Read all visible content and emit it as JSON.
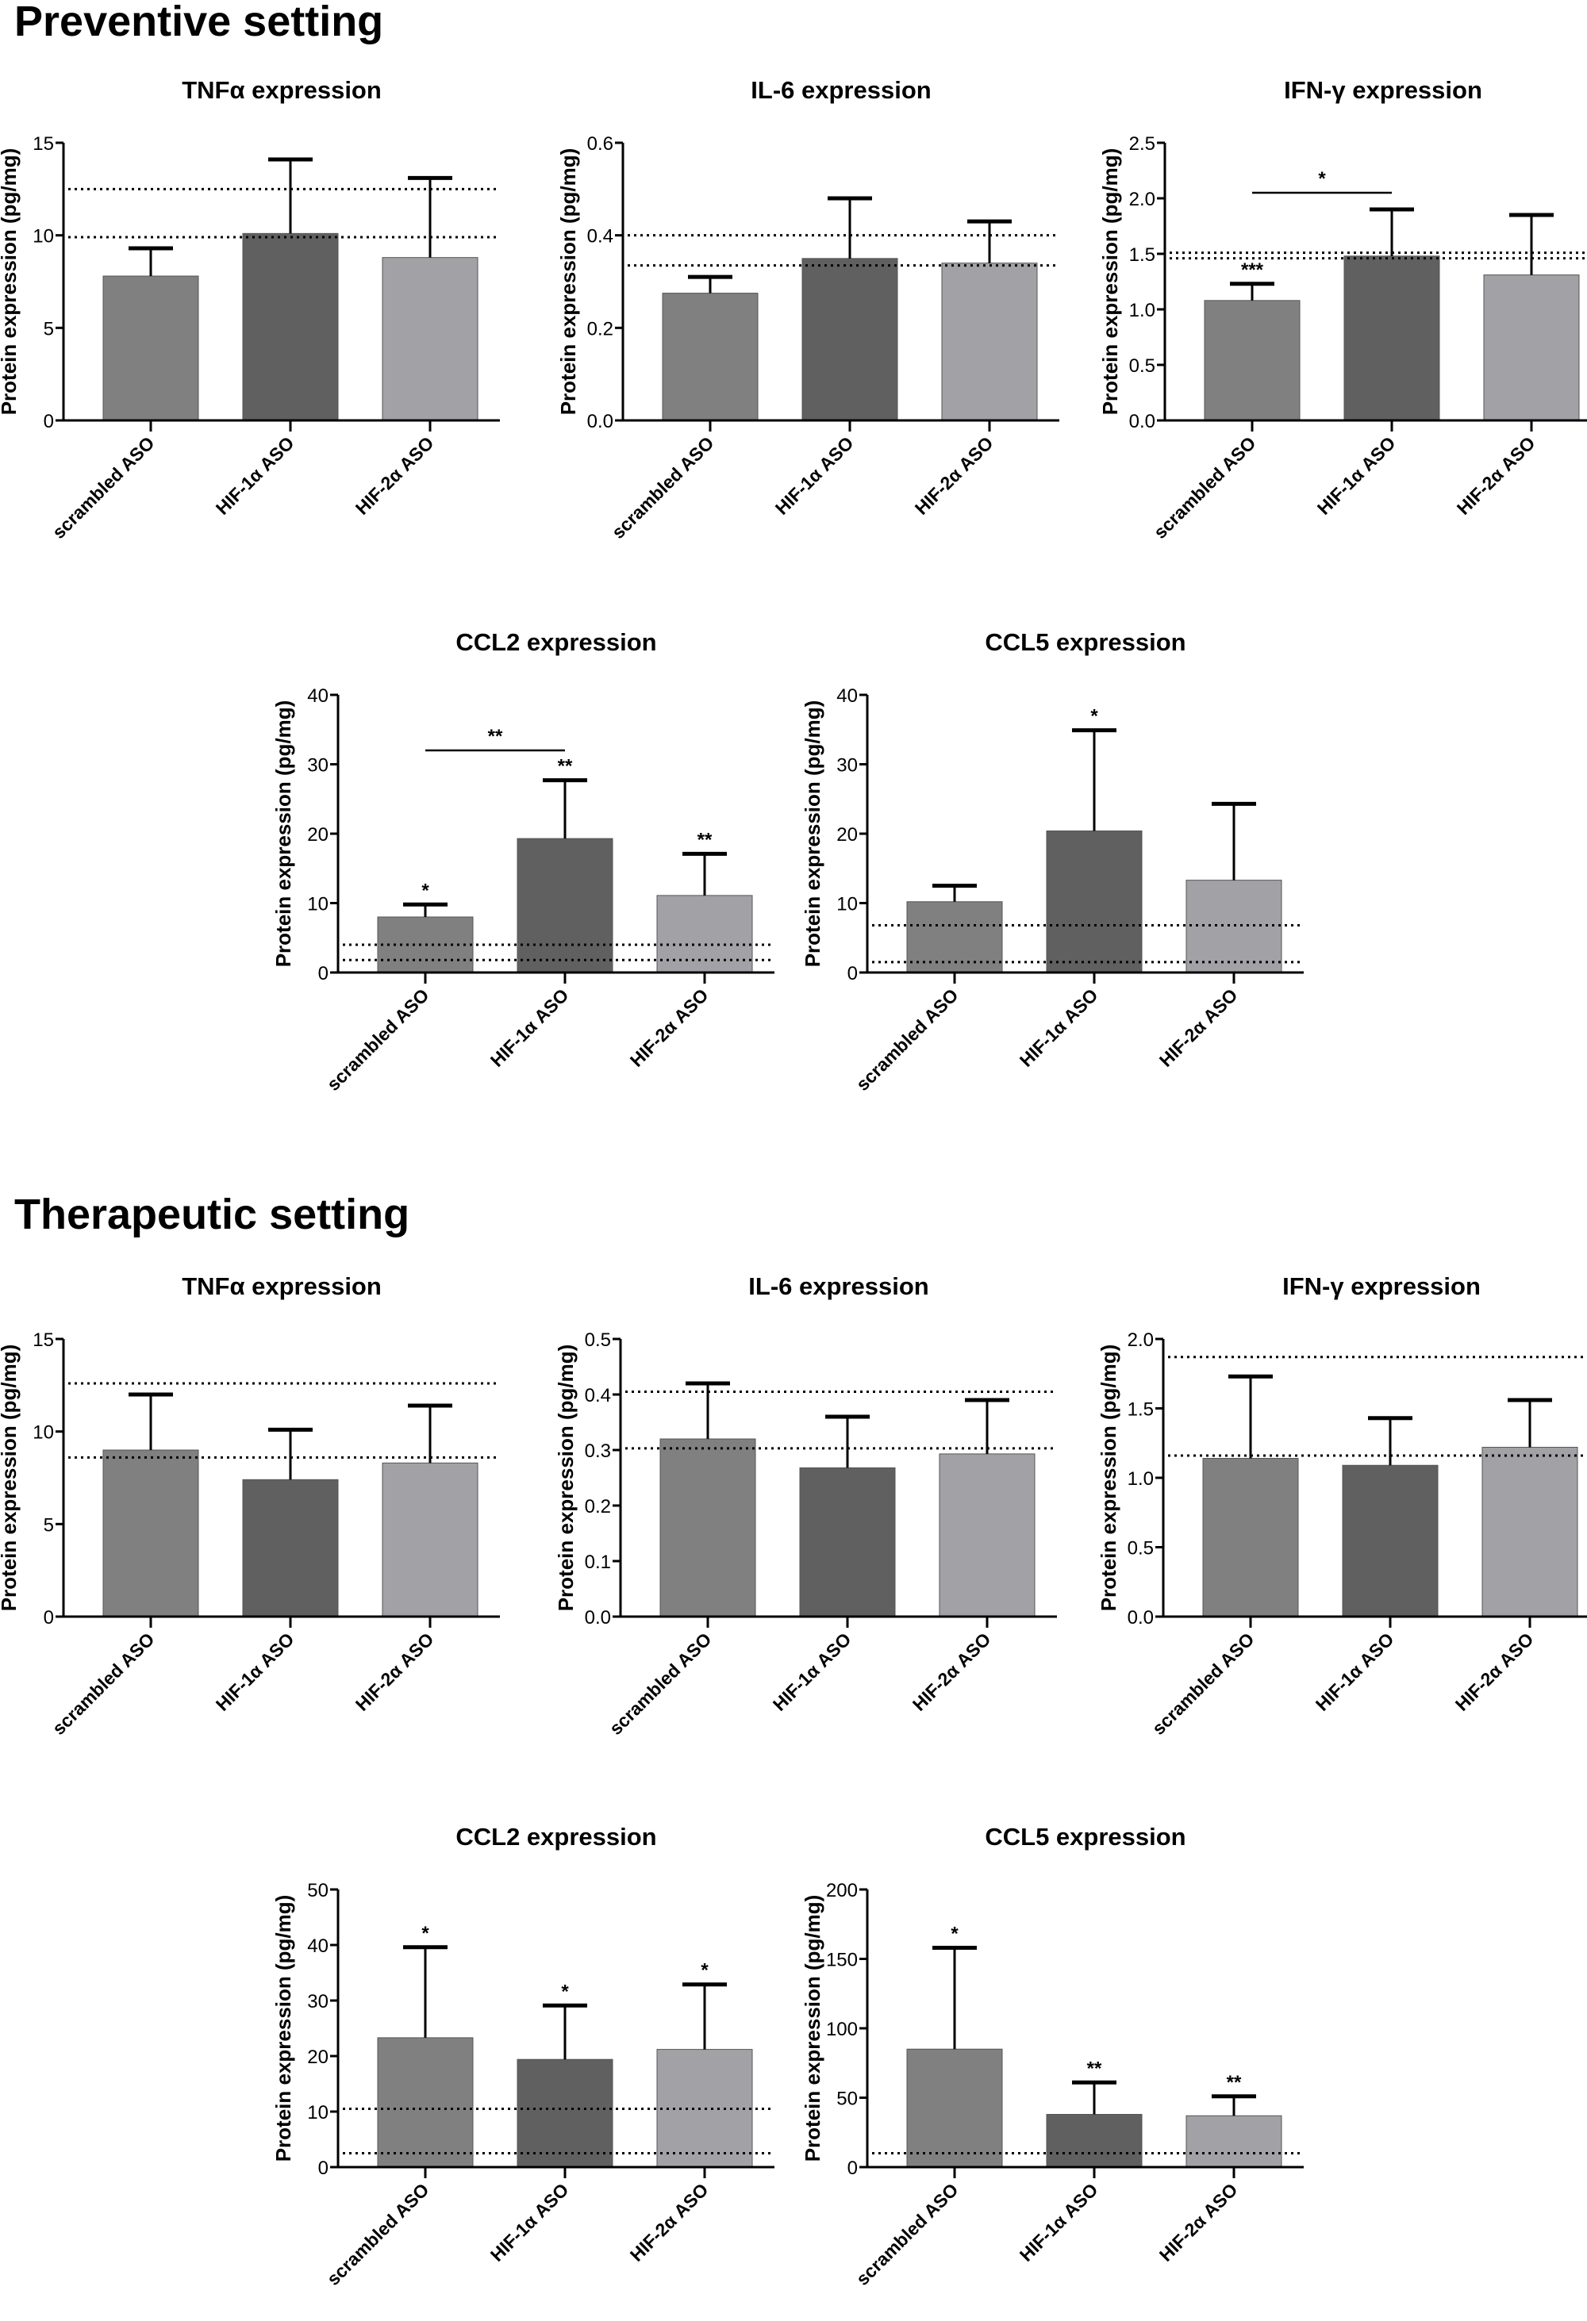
{
  "sections": [
    {
      "title": "Preventive setting"
    },
    {
      "title": "Therapeutic setting"
    }
  ],
  "colors": {
    "scrambled": "#808080",
    "hif1": "#606060",
    "hif2": "#a2a2a6"
  },
  "chart_data": [
    {
      "type": "bar",
      "section": "Preventive setting",
      "title": "TNFα expression",
      "ylabel": "Protein expression (pg/mg)",
      "categories": [
        "scrambled ASO",
        "HIF-1α ASO",
        "HIF-2α ASO"
      ],
      "values": [
        7.8,
        10.1,
        8.8
      ],
      "error_upper": [
        9.3,
        14.1,
        13.1
      ],
      "ylim": [
        0,
        15
      ],
      "yticks": [
        "0",
        "5",
        "10",
        "15"
      ],
      "reference_lines": [
        12.5,
        9.9
      ],
      "bar_annotations": [
        "",
        "",
        ""
      ],
      "brackets": []
    },
    {
      "type": "bar",
      "section": "Preventive setting",
      "title": "IL-6 expression",
      "ylabel": "Protein expression (pg/mg)",
      "categories": [
        "scrambled ASO",
        "HIF-1α ASO",
        "HIF-2α ASO"
      ],
      "values": [
        0.275,
        0.35,
        0.34
      ],
      "error_upper": [
        0.31,
        0.48,
        0.43
      ],
      "ylim": [
        0,
        0.6
      ],
      "yticks": [
        "0.0",
        "0.2",
        "0.4",
        "0.6"
      ],
      "reference_lines": [
        0.4,
        0.335
      ],
      "bar_annotations": [
        "",
        "",
        ""
      ],
      "brackets": []
    },
    {
      "type": "bar",
      "section": "Preventive setting",
      "title": "IFN-γ expression",
      "ylabel": "Protein expression (pg/mg)",
      "categories": [
        "scrambled ASO",
        "HIF-1α ASO",
        "HIF-2α ASO"
      ],
      "values": [
        1.08,
        1.48,
        1.31
      ],
      "error_upper": [
        1.23,
        1.9,
        1.85
      ],
      "ylim": [
        0,
        2.5
      ],
      "yticks": [
        "0.0",
        "0.5",
        "1.0",
        "1.5",
        "2.0",
        "2.5"
      ],
      "reference_lines": [
        1.51,
        1.46
      ],
      "bar_annotations": [
        "***",
        "",
        ""
      ],
      "brackets": [
        {
          "from": 0,
          "to": 1,
          "y": 2.05,
          "label": "*"
        }
      ]
    },
    {
      "type": "bar",
      "section": "Preventive setting",
      "title": "CCL2 expression",
      "ylabel": "Protein expression (pg/mg)",
      "categories": [
        "scrambled ASO",
        "HIF-1α ASO",
        "HIF-2α ASO"
      ],
      "values": [
        8.0,
        19.3,
        11.1
      ],
      "error_upper": [
        9.8,
        27.7,
        17.1
      ],
      "ylim": [
        0,
        40
      ],
      "yticks": [
        "0",
        "10",
        "20",
        "30",
        "40"
      ],
      "reference_lines": [
        4.0,
        1.8
      ],
      "bar_annotations": [
        "*",
        "**",
        "**"
      ],
      "brackets": [
        {
          "from": 0,
          "to": 1,
          "y": 32,
          "label": "**"
        }
      ]
    },
    {
      "type": "bar",
      "section": "Preventive setting",
      "title": "CCL5 expression",
      "ylabel": "Protein expression (pg/mg)",
      "categories": [
        "scrambled ASO",
        "HIF-1α ASO",
        "HIF-2α ASO"
      ],
      "values": [
        10.2,
        20.4,
        13.3
      ],
      "error_upper": [
        12.5,
        34.9,
        24.3
      ],
      "ylim": [
        0,
        40
      ],
      "yticks": [
        "0",
        "10",
        "20",
        "30",
        "40"
      ],
      "reference_lines": [
        6.8,
        1.5
      ],
      "bar_annotations": [
        "",
        "*",
        ""
      ],
      "brackets": []
    },
    {
      "type": "bar",
      "section": "Therapeutic setting",
      "title": "TNFα expression",
      "ylabel": "Protein expression (pg/mg)",
      "categories": [
        "scrambled ASO",
        "HIF-1α ASO",
        "HIF-2α ASO"
      ],
      "values": [
        9.0,
        7.4,
        8.3
      ],
      "error_upper": [
        12.0,
        10.1,
        11.4
      ],
      "ylim": [
        0,
        15
      ],
      "yticks": [
        "0",
        "5",
        "10",
        "15"
      ],
      "reference_lines": [
        12.6,
        8.6
      ],
      "bar_annotations": [
        "",
        "",
        ""
      ],
      "brackets": []
    },
    {
      "type": "bar",
      "section": "Therapeutic setting",
      "title": "IL-6 expression",
      "ylabel": "Protein expression (pg/mg)",
      "categories": [
        "scrambled ASO",
        "HIF-1α ASO",
        "HIF-2α ASO"
      ],
      "values": [
        0.32,
        0.268,
        0.293
      ],
      "error_upper": [
        0.42,
        0.36,
        0.39
      ],
      "ylim": [
        0,
        0.5
      ],
      "yticks": [
        "0.0",
        "0.1",
        "0.2",
        "0.3",
        "0.4",
        "0.5"
      ],
      "reference_lines": [
        0.405,
        0.303
      ],
      "bar_annotations": [
        "",
        "",
        ""
      ],
      "brackets": []
    },
    {
      "type": "bar",
      "section": "Therapeutic setting",
      "title": "IFN-γ expression",
      "ylabel": "Protein expression (pg/mg)",
      "categories": [
        "scrambled ASO",
        "HIF-1α ASO",
        "HIF-2α ASO"
      ],
      "values": [
        1.14,
        1.09,
        1.22
      ],
      "error_upper": [
        1.73,
        1.43,
        1.56
      ],
      "ylim": [
        0,
        2.0
      ],
      "yticks": [
        "0.0",
        "0.5",
        "1.0",
        "1.5",
        "2.0"
      ],
      "reference_lines": [
        1.87,
        1.16
      ],
      "bar_annotations": [
        "",
        "",
        ""
      ],
      "brackets": []
    },
    {
      "type": "bar",
      "section": "Therapeutic setting",
      "title": "CCL2 expression",
      "ylabel": "Protein expression (pg/mg)",
      "categories": [
        "scrambled ASO",
        "HIF-1α ASO",
        "HIF-2α ASO"
      ],
      "values": [
        23.3,
        19.4,
        21.2
      ],
      "error_upper": [
        39.6,
        29.1,
        32.9
      ],
      "ylim": [
        0,
        50
      ],
      "yticks": [
        "0",
        "10",
        "20",
        "30",
        "40",
        "50"
      ],
      "reference_lines": [
        10.5,
        2.5
      ],
      "bar_annotations": [
        "*",
        "*",
        "*"
      ],
      "brackets": []
    },
    {
      "type": "bar",
      "section": "Therapeutic setting",
      "title": "CCL5 expression",
      "ylabel": "Protein expression (pg/mg)",
      "categories": [
        "scrambled ASO",
        "HIF-1α ASO",
        "HIF-2α ASO"
      ],
      "values": [
        85,
        38,
        37
      ],
      "error_upper": [
        158,
        61,
        51
      ],
      "ylim": [
        0,
        200
      ],
      "yticks": [
        "0",
        "50",
        "100",
        "150",
        "200"
      ],
      "reference_lines": [
        10
      ],
      "bar_annotations": [
        "*",
        "**",
        "**"
      ],
      "brackets": []
    }
  ]
}
